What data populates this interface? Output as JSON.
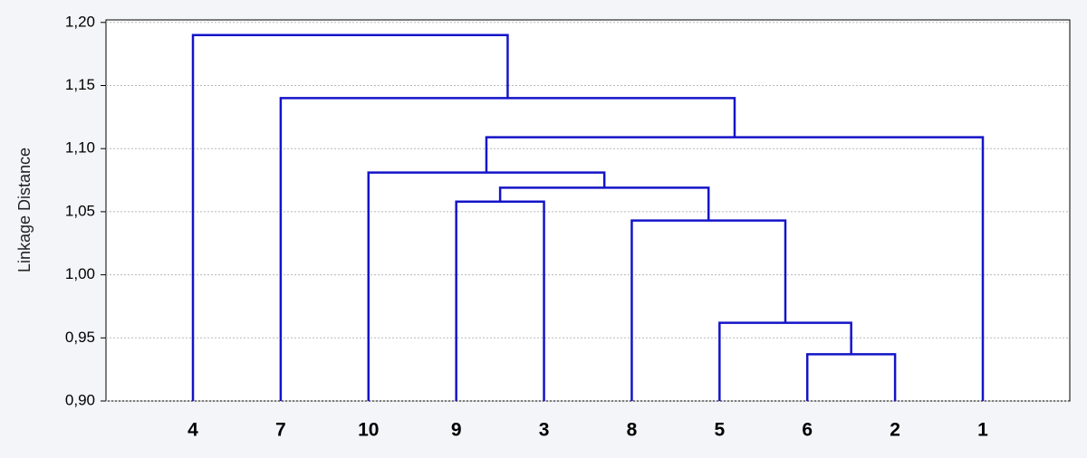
{
  "chart_data": {
    "type": "dendrogram",
    "ylabel": "Linkage Distance",
    "categories": [
      "4",
      "7",
      "10",
      "9",
      "3",
      "8",
      "5",
      "6",
      "2",
      "1"
    ],
    "merges": [
      [
        7,
        8,
        0.937
      ],
      [
        6,
        10,
        0.962
      ],
      [
        5,
        11,
        1.043
      ],
      [
        3,
        4,
        1.058
      ],
      [
        13,
        12,
        1.069
      ],
      [
        2,
        14,
        1.081
      ],
      [
        15,
        9,
        1.109
      ],
      [
        1,
        16,
        1.14
      ],
      [
        0,
        17,
        1.19
      ]
    ],
    "color": "#1414c8",
    "ylim": [
      0.9,
      1.202
    ],
    "yticks": [
      {
        "value": 0.9,
        "label": "0,90"
      },
      {
        "value": 0.95,
        "label": "0,95"
      },
      {
        "value": 1.0,
        "label": "1,00"
      },
      {
        "value": 1.05,
        "label": "1,05"
      },
      {
        "value": 1.1,
        "label": "1,10"
      },
      {
        "value": 1.15,
        "label": "1,15"
      },
      {
        "value": 1.2,
        "label": "1,20"
      }
    ],
    "grid": true
  }
}
